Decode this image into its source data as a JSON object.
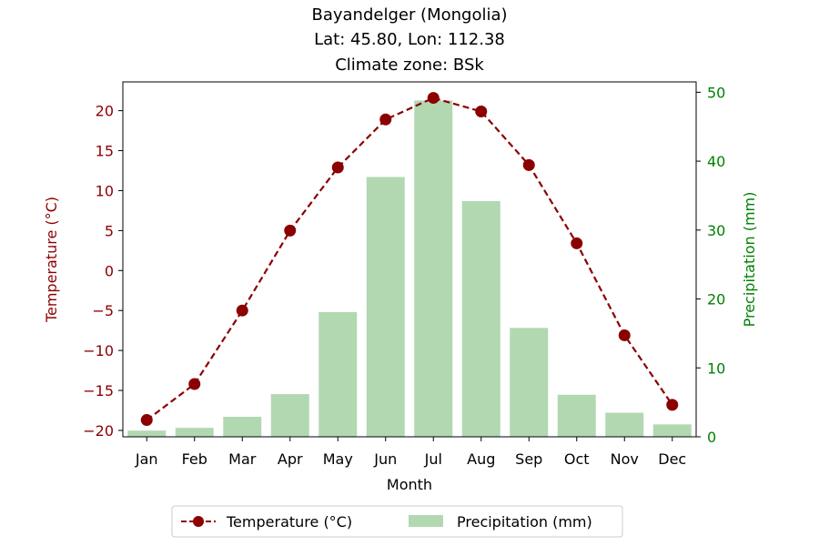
{
  "chart_data": {
    "type": "bar+line",
    "title_lines": [
      "Bayandelger (Mongolia)",
      "Lat: 45.80, Lon: 112.38",
      "Climate zone: BSk"
    ],
    "xlabel": "Month",
    "categories": [
      "Jan",
      "Feb",
      "Mar",
      "Apr",
      "May",
      "Jun",
      "Jul",
      "Aug",
      "Sep",
      "Oct",
      "Nov",
      "Dec"
    ],
    "temperature": {
      "name": "Temperature (°C)",
      "axis_label": "Temperature (°C)",
      "color": "#8b0000",
      "ylim": [
        -20.8,
        23.6
      ],
      "ticks": [
        -20,
        -15,
        -10,
        -5,
        0,
        5,
        10,
        15,
        20
      ],
      "values": [
        -18.7,
        -14.2,
        -5.0,
        5.0,
        12.9,
        18.9,
        21.6,
        19.9,
        13.2,
        3.4,
        -8.1,
        -16.8
      ]
    },
    "precipitation": {
      "name": "Precipitation (mm)",
      "axis_label": "Precipitation (mm)",
      "color": "#008000",
      "bar_color": "#b2d8b2",
      "ylim": [
        0,
        51.5
      ],
      "ticks": [
        0,
        10,
        20,
        30,
        40,
        50
      ],
      "values": [
        0.9,
        1.3,
        2.9,
        6.2,
        18.1,
        37.7,
        48.8,
        34.2,
        15.8,
        6.1,
        3.5,
        1.8
      ]
    },
    "legend_position": "bottom-center"
  }
}
